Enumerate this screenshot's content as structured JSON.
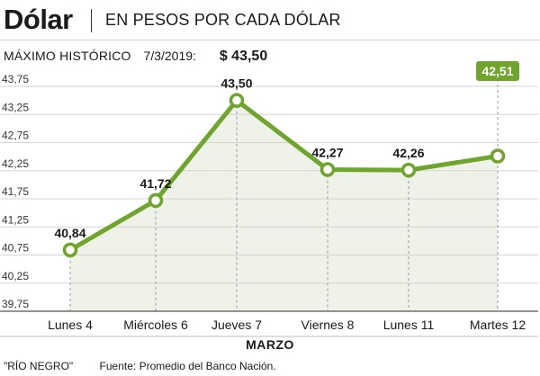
{
  "header": {
    "title": "Dólar",
    "subtitle": "EN PESOS POR CADA DÓLAR"
  },
  "max": {
    "label": "MÁXIMO HISTÓRICO",
    "date": "7/3/2019:",
    "value": "$ 43,50"
  },
  "colors": {
    "line": "#6fa52c",
    "fill": "#eef2e8",
    "highlight": "#6fa52c"
  },
  "chart_data": {
    "type": "line",
    "categories": [
      "Lunes 4",
      "Miércoles 6",
      "Jueves 7",
      "Viernes 8",
      "Lunes 11",
      "Martes 12"
    ],
    "values": [
      40.84,
      41.72,
      43.5,
      42.27,
      42.26,
      42.51
    ],
    "data_labels": [
      "40,84",
      "41,72",
      "43,50",
      "42,27",
      "42,26",
      "42,51"
    ],
    "highlight_index": 5,
    "yticks": [
      "39,75",
      "40,25",
      "40,75",
      "41,25",
      "41,75",
      "42,25",
      "42,75",
      "43,25",
      "43,75"
    ],
    "ytick_values": [
      39.75,
      40.25,
      40.75,
      41.25,
      41.75,
      42.25,
      42.75,
      43.25,
      43.75
    ],
    "ylim": [
      39.75,
      43.75
    ],
    "xlabel": "MARZO",
    "ylabel": "",
    "grid": true
  },
  "footer": {
    "credit": "\"RÍO NEGRO\"",
    "source": "Fuente: Promedio del Banco Nación."
  }
}
